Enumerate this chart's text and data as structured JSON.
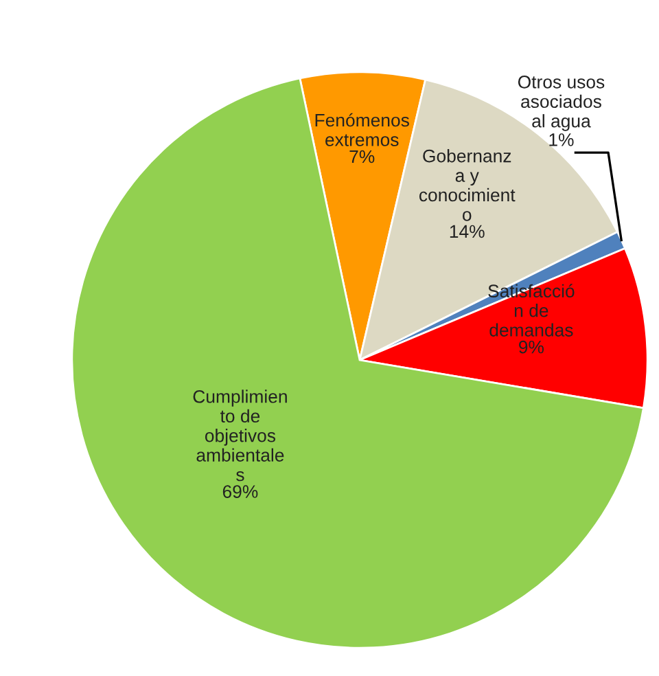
{
  "chart_data": {
    "type": "pie",
    "categories": [
      "Fenómenos\nextremos",
      "Gobernanz\na y\nconocimient\no",
      "Otros usos\nasociados\nal agua",
      "Satisfacció\nn de\ndemandas",
      "Cumplimien\nto de\nobjetivos\nambientale\ns"
    ],
    "values": [
      7,
      14,
      1,
      9,
      69
    ],
    "value_labels": [
      "7%",
      "14%",
      "1%",
      "9%",
      "69%"
    ],
    "colors": [
      "#ff9900",
      "#ddd9c3",
      "#4f81bd",
      "#ff0000",
      "#92d050"
    ]
  }
}
